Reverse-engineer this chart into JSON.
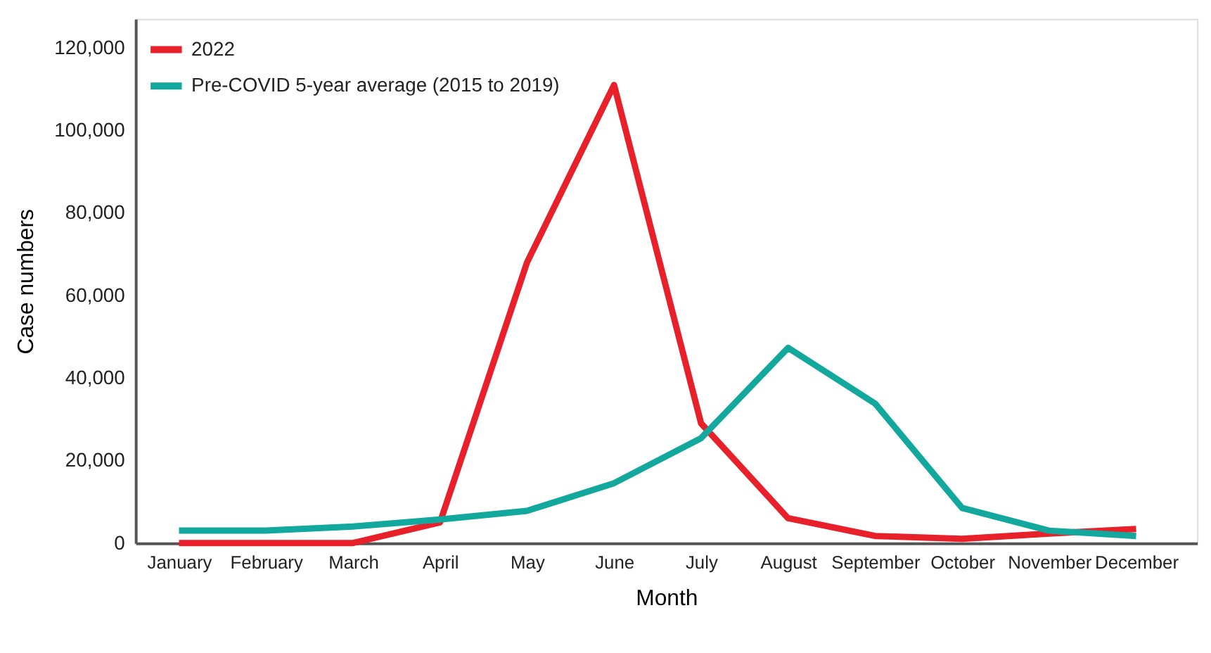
{
  "chart_data": {
    "type": "line",
    "xlabel": "Month",
    "ylabel": "Case numbers",
    "categories": [
      "January",
      "February",
      "March",
      "April",
      "May",
      "June",
      "July",
      "August",
      "September",
      "October",
      "November",
      "December"
    ],
    "series": [
      {
        "name": "2022",
        "color": "#e8202a",
        "values": [
          0,
          0,
          0,
          5000,
          68000,
          111000,
          29000,
          6000,
          1700,
          1000,
          2300,
          3400
        ]
      },
      {
        "name": "Pre-COVID 5-year average (2015 to 2019)",
        "color": "#13a89e",
        "values": [
          3000,
          3000,
          4000,
          5700,
          7800,
          14500,
          25400,
          47300,
          33800,
          8500,
          3000,
          1700
        ]
      }
    ],
    "ylim": [
      0,
      127000
    ],
    "yticks": [
      0,
      {
        "value": 20000,
        "label": "20,000"
      },
      {
        "value": 40000,
        "label": "40,000"
      },
      {
        "value": 60000,
        "label": "60,000"
      },
      {
        "value": 80000,
        "label": "80,000"
      },
      {
        "value": 100000,
        "label": "100,000"
      },
      {
        "value": 120000,
        "label": "120,000"
      }
    ],
    "grid": false,
    "legend": "top left",
    "marker": "none",
    "line_style": "solid"
  }
}
